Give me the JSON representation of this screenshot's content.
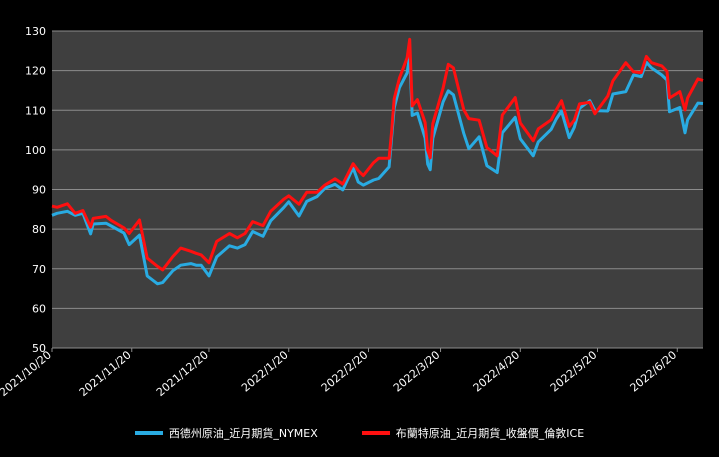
{
  "colors": {
    "background": "#000000",
    "plot_background": "#3f3f3f",
    "grid": "#8c8c8c",
    "text": "#ffffff",
    "wti": "#29abe2",
    "brent": "#ff1010"
  },
  "chart_data": {
    "type": "line",
    "title": "",
    "xlabel": "",
    "ylabel": "",
    "ylim": [
      50,
      130
    ],
    "y_ticks": [
      50,
      60,
      70,
      80,
      90,
      100,
      110,
      120,
      130
    ],
    "x_range": [
      "2021-10-20",
      "2022-06-30"
    ],
    "x_ticks": [
      "2021/10/20",
      "2021/11/20",
      "2021/12/20",
      "2022/1/20",
      "2022/2/20",
      "2022/3/20",
      "2022/4/20",
      "2022/5/20",
      "2022/6/20"
    ],
    "grid": "horizontal",
    "legend_position": "bottom",
    "series": [
      {
        "name": "西德州原油_近月期貨_NYMEX",
        "color": "#29abe2",
        "points": [
          [
            "2021-10-20",
            83.5
          ],
          [
            "2021-10-22",
            84.0
          ],
          [
            "2021-10-26",
            84.5
          ],
          [
            "2021-10-29",
            83.5
          ],
          [
            "2021-11-01",
            84.0
          ],
          [
            "2021-11-04",
            78.8
          ],
          [
            "2021-11-05",
            81.3
          ],
          [
            "2021-11-10",
            81.5
          ],
          [
            "2021-11-12",
            80.8
          ],
          [
            "2021-11-17",
            79.0
          ],
          [
            "2021-11-19",
            76.1
          ],
          [
            "2021-11-23",
            78.5
          ],
          [
            "2021-11-26",
            68.2
          ],
          [
            "2021-11-30",
            66.2
          ],
          [
            "2021-12-02",
            66.5
          ],
          [
            "2021-12-06",
            69.5
          ],
          [
            "2021-12-09",
            70.9
          ],
          [
            "2021-12-13",
            71.3
          ],
          [
            "2021-12-15",
            70.9
          ],
          [
            "2021-12-17",
            70.9
          ],
          [
            "2021-12-20",
            68.2
          ],
          [
            "2021-12-23",
            73.0
          ],
          [
            "2021-12-28",
            75.8
          ],
          [
            "2021-12-31",
            75.2
          ],
          [
            "2022-01-03",
            76.1
          ],
          [
            "2022-01-06",
            79.4
          ],
          [
            "2022-01-10",
            78.2
          ],
          [
            "2022-01-13",
            82.1
          ],
          [
            "2022-01-18",
            85.4
          ],
          [
            "2022-01-20",
            86.9
          ],
          [
            "2022-01-24",
            83.3
          ],
          [
            "2022-01-27",
            87.0
          ],
          [
            "2022-01-31",
            88.2
          ],
          [
            "2022-02-03",
            90.3
          ],
          [
            "2022-02-07",
            91.3
          ],
          [
            "2022-02-10",
            89.9
          ],
          [
            "2022-02-14",
            95.5
          ],
          [
            "2022-02-16",
            91.9
          ],
          [
            "2022-02-18",
            91.1
          ],
          [
            "2022-02-22",
            92.4
          ],
          [
            "2022-02-24",
            92.8
          ],
          [
            "2022-02-28",
            95.7
          ],
          [
            "2022-03-01",
            103.4
          ],
          [
            "2022-03-02",
            110.6
          ],
          [
            "2022-03-04",
            115.7
          ],
          [
            "2022-03-07",
            119.4
          ],
          [
            "2022-03-08",
            123.7
          ],
          [
            "2022-03-09",
            108.7
          ],
          [
            "2022-03-11",
            109.3
          ],
          [
            "2022-03-14",
            103.0
          ],
          [
            "2022-03-15",
            96.4
          ],
          [
            "2022-03-16",
            95.0
          ],
          [
            "2022-03-17",
            102.9
          ],
          [
            "2022-03-21",
            112.1
          ],
          [
            "2022-03-23",
            114.9
          ],
          [
            "2022-03-25",
            113.9
          ],
          [
            "2022-03-29",
            104.2
          ],
          [
            "2022-03-31",
            100.3
          ],
          [
            "2022-04-04",
            103.3
          ],
          [
            "2022-04-07",
            96.0
          ],
          [
            "2022-04-11",
            94.3
          ],
          [
            "2022-04-13",
            104.3
          ],
          [
            "2022-04-18",
            108.2
          ],
          [
            "2022-04-20",
            102.8
          ],
          [
            "2022-04-25",
            98.5
          ],
          [
            "2022-04-27",
            102.0
          ],
          [
            "2022-05-02",
            105.2
          ],
          [
            "2022-05-04",
            107.8
          ],
          [
            "2022-05-06",
            109.8
          ],
          [
            "2022-05-09",
            103.1
          ],
          [
            "2022-05-11",
            105.7
          ],
          [
            "2022-05-13",
            110.5
          ],
          [
            "2022-05-17",
            112.4
          ],
          [
            "2022-05-19",
            109.9
          ],
          [
            "2022-05-24",
            109.8
          ],
          [
            "2022-05-26",
            114.1
          ],
          [
            "2022-05-31",
            114.7
          ],
          [
            "2022-06-03",
            118.9
          ],
          [
            "2022-06-06",
            118.5
          ],
          [
            "2022-06-08",
            122.1
          ],
          [
            "2022-06-10",
            120.7
          ],
          [
            "2022-06-14",
            118.9
          ],
          [
            "2022-06-16",
            117.6
          ],
          [
            "2022-06-17",
            109.6
          ],
          [
            "2022-06-21",
            110.7
          ],
          [
            "2022-06-23",
            104.3
          ],
          [
            "2022-06-24",
            107.6
          ],
          [
            "2022-06-28",
            111.8
          ],
          [
            "2022-06-30",
            111.7
          ]
        ]
      },
      {
        "name": "布蘭特原油_近月期貨_收盤價_倫敦ICE",
        "color": "#ff1010",
        "points": [
          [
            "2021-10-20",
            85.8
          ],
          [
            "2021-10-22",
            85.5
          ],
          [
            "2021-10-26",
            86.4
          ],
          [
            "2021-10-29",
            84.0
          ],
          [
            "2021-11-01",
            84.7
          ],
          [
            "2021-11-04",
            80.5
          ],
          [
            "2021-11-05",
            82.7
          ],
          [
            "2021-11-10",
            83.2
          ],
          [
            "2021-11-12",
            82.2
          ],
          [
            "2021-11-17",
            80.3
          ],
          [
            "2021-11-19",
            78.9
          ],
          [
            "2021-11-23",
            82.3
          ],
          [
            "2021-11-26",
            72.7
          ],
          [
            "2021-11-30",
            70.6
          ],
          [
            "2021-12-02",
            69.7
          ],
          [
            "2021-12-06",
            73.1
          ],
          [
            "2021-12-09",
            75.2
          ],
          [
            "2021-12-13",
            74.4
          ],
          [
            "2021-12-15",
            73.9
          ],
          [
            "2021-12-17",
            73.5
          ],
          [
            "2021-12-20",
            71.5
          ],
          [
            "2021-12-23",
            76.9
          ],
          [
            "2021-12-28",
            78.9
          ],
          [
            "2021-12-31",
            77.8
          ],
          [
            "2022-01-03",
            78.9
          ],
          [
            "2022-01-06",
            81.9
          ],
          [
            "2022-01-10",
            80.9
          ],
          [
            "2022-01-13",
            84.5
          ],
          [
            "2022-01-18",
            87.5
          ],
          [
            "2022-01-20",
            88.4
          ],
          [
            "2022-01-24",
            86.3
          ],
          [
            "2022-01-27",
            89.3
          ],
          [
            "2022-01-31",
            89.3
          ],
          [
            "2022-02-03",
            91.1
          ],
          [
            "2022-02-07",
            92.7
          ],
          [
            "2022-02-10",
            91.4
          ],
          [
            "2022-02-14",
            96.5
          ],
          [
            "2022-02-16",
            94.8
          ],
          [
            "2022-02-18",
            93.5
          ],
          [
            "2022-02-22",
            96.8
          ],
          [
            "2022-02-24",
            97.9
          ],
          [
            "2022-02-28",
            97.9
          ],
          [
            "2022-03-01",
            104.9
          ],
          [
            "2022-03-02",
            112.9
          ],
          [
            "2022-03-04",
            118.1
          ],
          [
            "2022-03-07",
            123.2
          ],
          [
            "2022-03-08",
            127.9
          ],
          [
            "2022-03-09",
            111.1
          ],
          [
            "2022-03-11",
            112.7
          ],
          [
            "2022-03-14",
            106.9
          ],
          [
            "2022-03-15",
            99.9
          ],
          [
            "2022-03-16",
            98.0
          ],
          [
            "2022-03-17",
            106.6
          ],
          [
            "2022-03-21",
            115.6
          ],
          [
            "2022-03-23",
            121.6
          ],
          [
            "2022-03-25",
            120.7
          ],
          [
            "2022-03-29",
            110.2
          ],
          [
            "2022-03-31",
            107.9
          ],
          [
            "2022-04-04",
            107.5
          ],
          [
            "2022-04-07",
            100.6
          ],
          [
            "2022-04-11",
            98.5
          ],
          [
            "2022-04-13",
            108.8
          ],
          [
            "2022-04-18",
            113.2
          ],
          [
            "2022-04-20",
            106.8
          ],
          [
            "2022-04-25",
            102.3
          ],
          [
            "2022-04-27",
            105.3
          ],
          [
            "2022-05-02",
            107.6
          ],
          [
            "2022-05-04",
            110.1
          ],
          [
            "2022-05-06",
            112.4
          ],
          [
            "2022-05-09",
            105.9
          ],
          [
            "2022-05-11",
            107.5
          ],
          [
            "2022-05-13",
            111.6
          ],
          [
            "2022-05-17",
            112.0
          ],
          [
            "2022-05-19",
            109.1
          ],
          [
            "2022-05-24",
            113.6
          ],
          [
            "2022-05-26",
            117.4
          ],
          [
            "2022-05-31",
            122.0
          ],
          [
            "2022-06-03",
            119.7
          ],
          [
            "2022-06-06",
            119.5
          ],
          [
            "2022-06-08",
            123.6
          ],
          [
            "2022-06-10",
            122.0
          ],
          [
            "2022-06-14",
            121.2
          ],
          [
            "2022-06-16",
            119.8
          ],
          [
            "2022-06-17",
            113.1
          ],
          [
            "2022-06-21",
            114.7
          ],
          [
            "2022-06-23",
            110.1
          ],
          [
            "2022-06-24",
            113.1
          ],
          [
            "2022-06-28",
            117.9
          ],
          [
            "2022-06-30",
            117.5
          ]
        ]
      }
    ]
  }
}
